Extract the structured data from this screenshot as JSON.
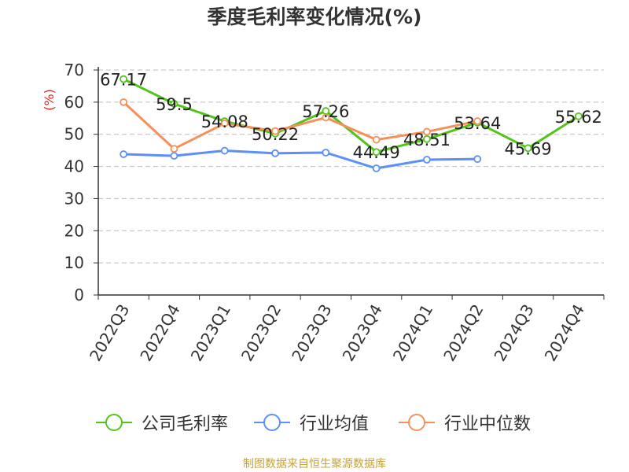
{
  "title": "季度毛利率变化情况(%)",
  "source": "制图数据来自恒生聚源数据库",
  "chart_data": {
    "type": "line",
    "title": "季度毛利率变化情况(%)",
    "ylabel": "(%)",
    "xlabel": "",
    "ylim": [
      0,
      70
    ],
    "yticks": [
      0,
      10,
      20,
      30,
      40,
      50,
      60,
      70
    ],
    "grid": true,
    "legend_position": "bottom",
    "categories": [
      "2022Q3",
      "2022Q4",
      "2023Q1",
      "2023Q2",
      "2023Q3",
      "2023Q4",
      "2024Q1",
      "2024Q2",
      "2024Q3",
      "2024Q4"
    ],
    "series": [
      {
        "name": "公司毛利率",
        "color": "#52c41a",
        "values": [
          67.17,
          59.5,
          54.08,
          50.22,
          57.26,
          44.49,
          48.51,
          53.64,
          45.69,
          55.62
        ],
        "labels": [
          "67.17",
          "59.5",
          "54.08",
          "50.22",
          "57.26",
          "44.49",
          "48.51",
          "53.64",
          "45.69",
          "55.62"
        ]
      },
      {
        "name": "行业均值",
        "color": "#5b8ff9",
        "values": [
          43.8,
          43.3,
          44.9,
          44.1,
          44.3,
          39.4,
          42.1,
          42.3,
          null,
          null
        ]
      },
      {
        "name": "行业中位数",
        "color": "#f6905a",
        "values": [
          60.0,
          45.5,
          53.4,
          51.0,
          55.2,
          48.3,
          50.8,
          54.1,
          null,
          null
        ]
      }
    ]
  }
}
